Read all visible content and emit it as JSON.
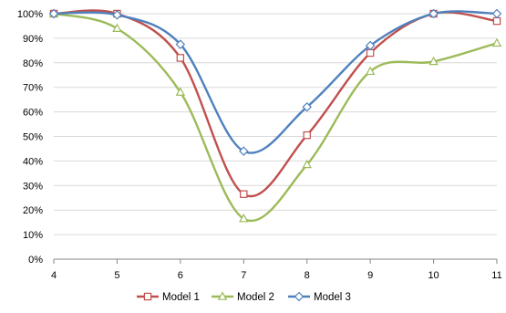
{
  "chart_data": {
    "type": "line",
    "x": [
      4,
      5,
      6,
      7,
      8,
      9,
      10,
      11
    ],
    "xlim": [
      4,
      11
    ],
    "ylim": [
      0,
      100
    ],
    "y_ticks": [
      "0%",
      "10%",
      "20%",
      "30%",
      "40%",
      "50%",
      "60%",
      "70%",
      "80%",
      "90%",
      "100%"
    ],
    "x_ticks": [
      "4",
      "5",
      "6",
      "7",
      "8",
      "9",
      "10",
      "11"
    ],
    "grid": true,
    "legend_position": "bottom",
    "series": [
      {
        "name": "Model 1",
        "color": "#C0504D",
        "marker": "square",
        "values": [
          100,
          100,
          82,
          26.5,
          50.5,
          84,
          100,
          97
        ]
      },
      {
        "name": "Model 2",
        "color": "#9BBB59",
        "marker": "triangle",
        "values": [
          100,
          94,
          68,
          16.5,
          38.5,
          76.5,
          80.5,
          88
        ]
      },
      {
        "name": "Model 3",
        "color": "#4F81BD",
        "marker": "diamond",
        "values": [
          100,
          99.5,
          87.5,
          44,
          62,
          87,
          100,
          100
        ]
      }
    ]
  }
}
